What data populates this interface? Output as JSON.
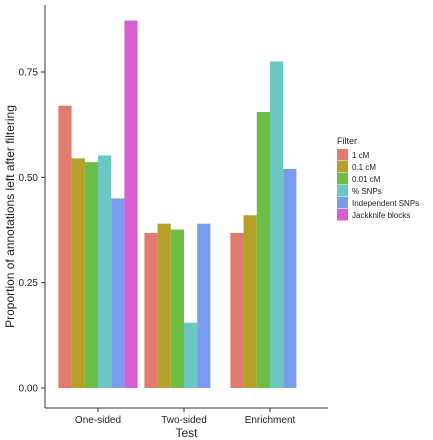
{
  "chart_data": {
    "type": "bar",
    "categories": [
      "One-sided",
      "Two-sided",
      "Enrichment"
    ],
    "xlabel": "Test",
    "ylabel": "Proportion of annotations left after filtering",
    "ylim": [
      0,
      0.9
    ],
    "yticks": [
      0.0,
      0.25,
      0.5,
      0.75
    ],
    "ytick_labels": [
      "0.00",
      "0.25",
      "0.50",
      "0.75"
    ],
    "grid": false,
    "legend": {
      "title": "Filter",
      "position": "right"
    },
    "series": [
      {
        "name": "1 cM",
        "color": "#E07B6E",
        "values": [
          0.67,
          0.368,
          0.368
        ]
      },
      {
        "name": "0.1 cM",
        "color": "#B5A02A",
        "values": [
          0.545,
          0.39,
          0.41
        ]
      },
      {
        "name": "0.01 cM",
        "color": "#6CBE45",
        "values": [
          0.536,
          0.376,
          0.655
        ]
      },
      {
        "name": "% SNPs",
        "color": "#6CC7C2",
        "values": [
          0.552,
          0.155,
          0.775
        ]
      },
      {
        "name": "Independent SNPs",
        "color": "#7A9CF0",
        "values": [
          0.45,
          0.39,
          0.52
        ]
      },
      {
        "name": "Jackknife blocks",
        "color": "#D75FD4",
        "values": [
          0.872,
          null,
          null
        ]
      }
    ]
  }
}
